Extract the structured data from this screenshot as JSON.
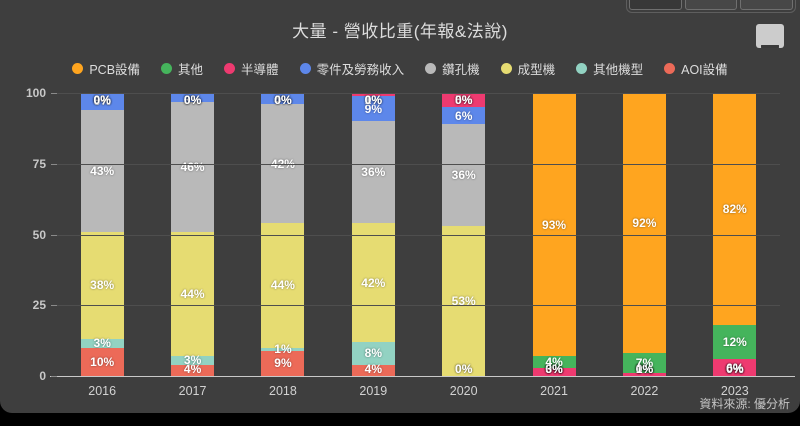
{
  "header": {
    "title": "大量 - 營收比重(年報&法說)",
    "toolbar_buttons": [
      "",
      "",
      ""
    ],
    "menu_icon": "hamburger-menu-icon"
  },
  "source_note": "資料來源: 優分析",
  "chart_data": {
    "type": "bar",
    "stacked": true,
    "unit": "%",
    "title": "大量 - 營收比重(年報&法說)",
    "categories": [
      "2016",
      "2017",
      "2018",
      "2019",
      "2020",
      "2021",
      "2022",
      "2023"
    ],
    "ylim": [
      0,
      100
    ],
    "yticks": [
      0,
      25,
      50,
      75,
      100
    ],
    "grid": true,
    "legend_position": "top",
    "legend_order": [
      "PCB設備",
      "其他",
      "半導體",
      "零件及勞務收入",
      "鑽孔機",
      "成型機",
      "其他機型",
      "AOI設備"
    ],
    "series": [
      {
        "name": "AOI設備",
        "color": "#ec6a58",
        "values": [
          10,
          4,
          9,
          4,
          0,
          0,
          0,
          0
        ]
      },
      {
        "name": "其他機型",
        "color": "#92d2c2",
        "values": [
          3,
          3,
          1,
          8,
          0,
          0,
          0,
          0
        ]
      },
      {
        "name": "成型機",
        "color": "#e6dc72",
        "values": [
          38,
          44,
          44,
          42,
          53,
          0,
          0,
          0
        ]
      },
      {
        "name": "鑽孔機",
        "color": "#b9b9b9",
        "values": [
          43,
          46,
          42,
          36,
          36,
          0,
          0,
          0
        ]
      },
      {
        "name": "零件及勞務收入",
        "color": "#5d87ea",
        "values": [
          6,
          3,
          4,
          9,
          6,
          0,
          0,
          0
        ]
      },
      {
        "name": "半導體",
        "color": "#ee3a70",
        "values": [
          0,
          0,
          0,
          1,
          5,
          3,
          1,
          6
        ]
      },
      {
        "name": "其他",
        "color": "#45b45c",
        "values": [
          0,
          0,
          0,
          0,
          0,
          4,
          7,
          12
        ]
      },
      {
        "name": "PCB設備",
        "color": "#ffa51f",
        "values": [
          0,
          0,
          0,
          0,
          0,
          93,
          92,
          82
        ]
      }
    ]
  }
}
